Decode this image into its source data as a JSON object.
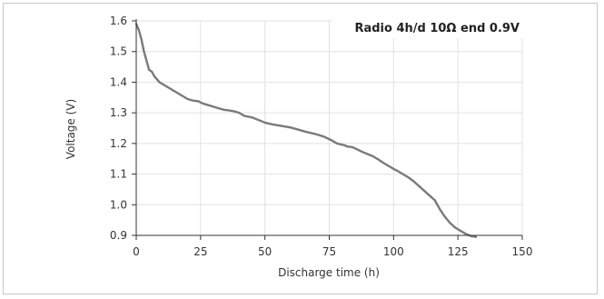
{
  "chart_data": {
    "type": "line",
    "title": "Radio 4h/d 10Ω end 0.9V",
    "xlabel": "Discharge time (h)",
    "ylabel": "Voltage (V)",
    "xlim": [
      0,
      150
    ],
    "ylim": [
      0.9,
      1.6
    ],
    "xticks": [
      0,
      25,
      50,
      75,
      100,
      125,
      150
    ],
    "yticks": [
      0.9,
      1.0,
      1.1,
      1.2,
      1.3,
      1.4,
      1.5,
      1.6
    ],
    "ytick_labels": [
      "0.9",
      "1.0",
      "1.1",
      "1.2",
      "1.3",
      "1.4",
      "1.5",
      "1.6"
    ],
    "grid": true,
    "legend": "none",
    "series": [
      {
        "color": "#7a7a7a",
        "x": [
          0,
          1,
          2,
          3,
          4,
          5,
          6,
          7,
          8,
          9,
          10,
          12,
          14,
          16,
          18,
          20,
          22,
          24,
          26,
          28,
          30,
          32,
          34,
          36,
          38,
          40,
          42,
          45,
          48,
          50,
          53,
          56,
          60,
          63,
          66,
          70,
          73,
          76,
          77,
          78,
          79,
          80,
          81,
          82,
          84,
          86,
          88,
          90,
          92,
          94,
          96,
          98,
          100,
          102,
          104,
          106,
          108,
          110,
          112,
          114,
          116,
          118,
          120,
          122,
          124,
          126,
          128,
          130,
          132
        ],
        "y": [
          1.59,
          1.57,
          1.54,
          1.5,
          1.47,
          1.44,
          1.435,
          1.42,
          1.41,
          1.4,
          1.395,
          1.385,
          1.375,
          1.365,
          1.355,
          1.345,
          1.34,
          1.338,
          1.33,
          1.325,
          1.32,
          1.315,
          1.31,
          1.308,
          1.305,
          1.3,
          1.29,
          1.285,
          1.275,
          1.268,
          1.262,
          1.258,
          1.252,
          1.245,
          1.238,
          1.23,
          1.222,
          1.21,
          1.205,
          1.2,
          1.198,
          1.196,
          1.194,
          1.19,
          1.188,
          1.18,
          1.172,
          1.165,
          1.158,
          1.148,
          1.137,
          1.127,
          1.117,
          1.108,
          1.098,
          1.088,
          1.075,
          1.06,
          1.045,
          1.03,
          1.015,
          0.985,
          0.96,
          0.94,
          0.925,
          0.915,
          0.905,
          0.898,
          0.895
        ]
      }
    ]
  }
}
